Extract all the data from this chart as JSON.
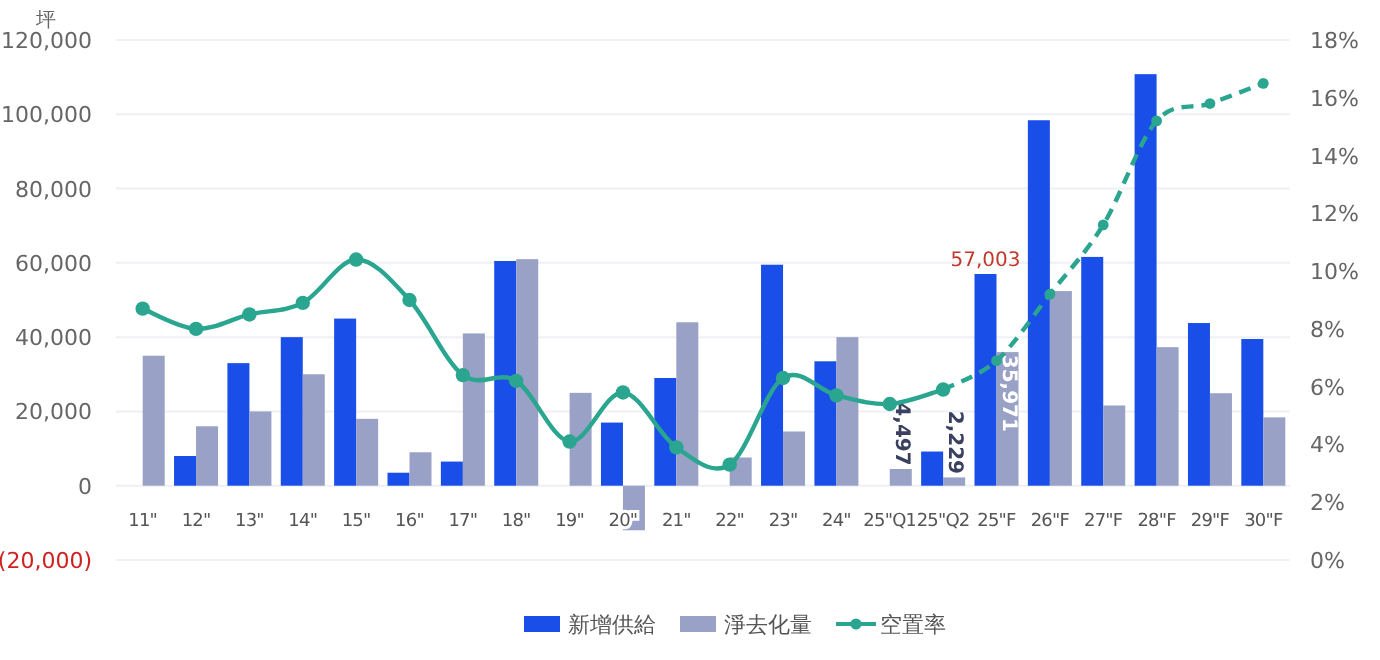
{
  "chart_data": {
    "type": "bar",
    "ylabel": "坪",
    "categories": [
      "11\"",
      "12\"",
      "13\"",
      "14\"",
      "15\"",
      "16\"",
      "17\"",
      "18\"",
      "19\"",
      "20\"",
      "21\"",
      "22\"",
      "23\"",
      "24\"",
      "25\"Q1",
      "25\"Q2",
      "25\"F",
      "26\"F",
      "27\"F",
      "28\"F",
      "29\"F",
      "30\"F"
    ],
    "series": [
      {
        "name": "新增供給",
        "color": "#1a4ee8",
        "values": [
          null,
          8000,
          33000,
          40000,
          45000,
          3500,
          6500,
          60500,
          null,
          17000,
          29000,
          null,
          59500,
          33500,
          null,
          9200,
          57003,
          98400,
          61600,
          110800,
          43800,
          39500
        ],
        "value_labels": [
          null,
          null,
          null,
          null,
          null,
          null,
          null,
          null,
          null,
          null,
          null,
          null,
          null,
          null,
          null,
          null,
          "57,003",
          null,
          null,
          null,
          null,
          null
        ]
      },
      {
        "name": "淨去化量",
        "color": "#99a1c6",
        "values": [
          35000,
          16000,
          20000,
          30000,
          18000,
          9000,
          41000,
          61000,
          25000,
          -12000,
          44000,
          7600,
          14600,
          40000,
          4497,
          2229,
          35971,
          52400,
          21600,
          37300,
          24900,
          18400
        ],
        "value_labels": [
          null,
          null,
          null,
          null,
          null,
          null,
          null,
          null,
          null,
          null,
          null,
          null,
          null,
          null,
          "4,497",
          "2,229",
          "35,971",
          null,
          null,
          null,
          null,
          null
        ]
      },
      {
        "name": "空置率",
        "type": "line",
        "axis": "y2",
        "color": "#2aa58f",
        "line_style": "solid",
        "marker": "circle",
        "values": [
          8.7,
          8.0,
          8.5,
          8.9,
          10.4,
          9.0,
          6.4,
          6.2,
          4.1,
          5.8,
          3.9,
          3.3,
          6.3,
          5.7,
          5.4,
          5.9,
          null,
          null,
          null,
          null,
          null,
          null
        ]
      },
      {
        "type": "line",
        "axis": "y2",
        "color": "#2aa58f",
        "line_style": "dashed",
        "marker": "circle",
        "values": [
          null,
          null,
          null,
          null,
          null,
          null,
          null,
          null,
          null,
          null,
          null,
          null,
          null,
          null,
          null,
          5.9,
          6.9,
          9.2,
          11.6,
          15.2,
          15.8,
          16.5
        ]
      }
    ],
    "ylim": [
      -20000,
      120000
    ],
    "yticks": [
      {
        "value": -20000,
        "label": "(20,000)"
      },
      {
        "value": 0,
        "label": "0"
      },
      {
        "value": 20000,
        "label": "20,000"
      },
      {
        "value": 40000,
        "label": "40,000"
      },
      {
        "value": 60000,
        "label": "60,000"
      },
      {
        "value": 80000,
        "label": "80,000"
      },
      {
        "value": 100000,
        "label": "100,000"
      },
      {
        "value": 120000,
        "label": "120,000"
      }
    ],
    "y2lim": [
      0,
      18
    ],
    "y2ticks": [
      {
        "value": 0,
        "label": "0%"
      },
      {
        "value": 2,
        "label": "2%"
      },
      {
        "value": 4,
        "label": "4%"
      },
      {
        "value": 6,
        "label": "6%"
      },
      {
        "value": 8,
        "label": "8%"
      },
      {
        "value": 10,
        "label": "10%"
      },
      {
        "value": 12,
        "label": "12%"
      },
      {
        "value": 14,
        "label": "14%"
      },
      {
        "value": 16,
        "label": "16%"
      },
      {
        "value": 18,
        "label": "18%"
      }
    ],
    "grid": "y",
    "legend": "bottom"
  }
}
